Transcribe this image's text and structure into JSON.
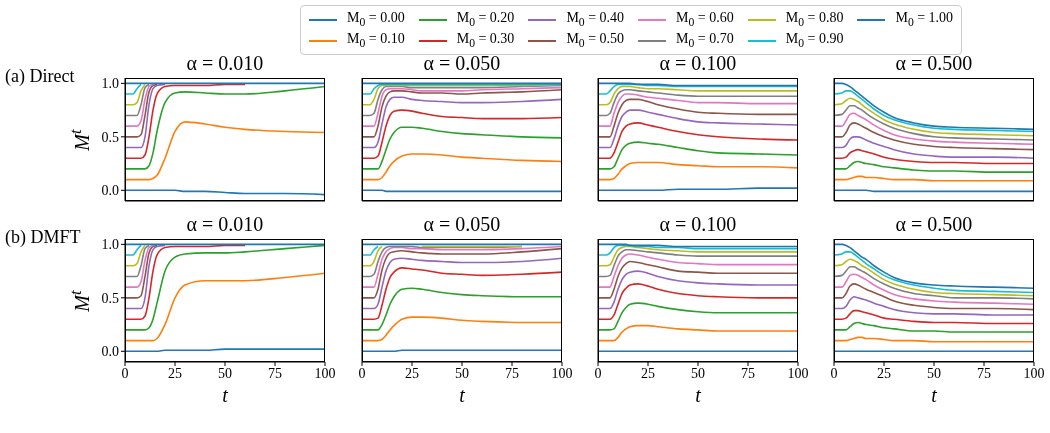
{
  "chart_data": [
    {
      "type": "line",
      "title": "α = 0.010",
      "ylabel": "M$^{t}$",
      "annotations": [
        "(a) Direct"
      ],
      "legend": "top",
      "tick_labels": "y",
      "xlim": [
        0,
        100
      ],
      "xticks": [
        0,
        25,
        50,
        75,
        100
      ],
      "ylim": [
        -0.1,
        1.05
      ],
      "yticks": [
        {
          "value": 0,
          "label": "0.0"
        },
        {
          "value": 0.5,
          "label": "0.5"
        },
        {
          "value": 1,
          "label": "1.0"
        }
      ],
      "x": [
        0,
        4,
        6,
        8,
        10,
        12,
        14,
        16,
        20,
        25,
        30,
        40,
        50,
        60,
        80,
        100
      ],
      "series": [
        {
          "name": "M$_{0}$ = 0.00",
          "color": "#1f77b4",
          "values": [
            0,
            0,
            0,
            0,
            0,
            0,
            0,
            0,
            0,
            0,
            -0.01,
            -0.01,
            -0.02,
            -0.03,
            -0.03,
            -0.04
          ]
        },
        {
          "name": "M$_{0}$ = 0.10",
          "color": "#ff7f0e",
          "values": [
            0.1,
            0.1,
            0.1,
            0.1,
            0.1,
            0.1,
            0.11,
            0.14,
            0.3,
            0.55,
            0.64,
            0.62,
            0.59,
            0.57,
            0.55,
            0.54
          ]
        },
        {
          "name": "M$_{0}$ = 0.20",
          "color": "#2ca02c",
          "values": [
            0.2,
            0.2,
            0.2,
            0.2,
            0.2,
            0.23,
            0.35,
            0.55,
            0.82,
            0.91,
            0.92,
            0.91,
            0.9,
            0.9,
            0.93,
            0.97
          ]
        },
        {
          "name": "M$_{0}$ = 0.30",
          "color": "#d62728",
          "values": [
            0.3,
            0.3,
            0.3,
            0.3,
            0.33,
            0.5,
            0.75,
            0.9,
            0.97,
            0.98,
            0.98,
            0.98,
            0.99,
            0.99,
            null,
            null
          ]
        },
        {
          "name": "M$_{0}$ = 0.40",
          "color": "#9467bd",
          "values": [
            0.4,
            0.4,
            0.4,
            0.4,
            0.5,
            0.8,
            0.95,
            0.98,
            0.99,
            null,
            null,
            null,
            null,
            null,
            null,
            null
          ]
        },
        {
          "name": "M$_{0}$ = 0.50",
          "color": "#8c564b",
          "values": [
            0.5,
            0.5,
            0.5,
            0.52,
            0.7,
            0.92,
            0.98,
            0.99,
            null,
            null,
            null,
            null,
            null,
            null,
            null,
            null
          ]
        },
        {
          "name": "M$_{0}$ = 0.60",
          "color": "#e377c2",
          "values": [
            0.6,
            0.6,
            0.6,
            0.65,
            0.85,
            0.97,
            0.99,
            null,
            null,
            null,
            null,
            null,
            null,
            null,
            null,
            null
          ]
        },
        {
          "name": "M$_{0}$ = 0.70",
          "color": "#7f7f7f",
          "values": [
            0.7,
            0.7,
            0.7,
            0.8,
            0.96,
            0.99,
            null,
            null,
            null,
            null,
            null,
            null,
            null,
            null,
            null,
            null
          ]
        },
        {
          "name": "M$_{0}$ = 0.80",
          "color": "#bcbd22",
          "values": [
            0.8,
            0.8,
            0.82,
            0.93,
            0.99,
            null,
            null,
            null,
            null,
            null,
            null,
            null,
            null,
            null,
            null,
            null
          ]
        },
        {
          "name": "M$_{0}$ = 0.90",
          "color": "#17becf",
          "values": [
            0.9,
            0.9,
            0.95,
            0.99,
            null,
            null,
            null,
            null,
            null,
            null,
            null,
            null,
            null,
            null,
            null,
            null
          ]
        },
        {
          "name": "M$_{0}$ = 1.00",
          "color": "#1f77b4",
          "values": [
            1,
            1,
            1,
            1,
            1,
            1,
            1,
            1,
            1,
            1,
            1,
            1,
            1,
            1,
            1,
            1
          ]
        }
      ]
    },
    {
      "type": "line",
      "title": "α = 0.050",
      "tick_labels": false,
      "xlim": [
        0,
        100
      ],
      "xticks": [
        0,
        25,
        50,
        75,
        100
      ],
      "ylim": [
        -0.1,
        1.05
      ],
      "yticks": [
        {
          "value": 0,
          "label": null
        },
        {
          "value": 0.5,
          "label": null
        },
        {
          "value": 1,
          "label": null
        }
      ],
      "x": [
        0,
        4,
        6,
        8,
        10,
        12,
        14,
        16,
        20,
        25,
        30,
        40,
        50,
        60,
        80,
        100
      ],
      "series": [
        {
          "color": "#1f77b4",
          "values": [
            0,
            0,
            0,
            0,
            0,
            -0.01,
            -0.01,
            -0.01,
            -0.01,
            -0.01,
            -0.01,
            -0.01,
            -0.01,
            -0.01,
            -0.01,
            -0.01
          ]
        },
        {
          "color": "#ff7f0e",
          "values": [
            0.1,
            0.1,
            0.1,
            0.1,
            0.12,
            0.17,
            0.23,
            0.27,
            0.32,
            0.34,
            0.34,
            0.33,
            0.31,
            0.3,
            0.28,
            0.27
          ]
        },
        {
          "color": "#2ca02c",
          "values": [
            0.2,
            0.2,
            0.2,
            0.2,
            0.27,
            0.38,
            0.48,
            0.54,
            0.59,
            0.59,
            0.58,
            0.55,
            0.53,
            0.52,
            0.5,
            0.49
          ]
        },
        {
          "color": "#d62728",
          "values": [
            0.3,
            0.3,
            0.3,
            0.32,
            0.45,
            0.6,
            0.7,
            0.74,
            0.75,
            0.74,
            0.72,
            0.69,
            0.68,
            0.67,
            0.67,
            0.68
          ]
        },
        {
          "color": "#9467bd",
          "values": [
            0.4,
            0.4,
            0.4,
            0.45,
            0.62,
            0.78,
            0.85,
            0.87,
            0.87,
            0.85,
            0.84,
            0.83,
            0.82,
            0.82,
            0.83,
            0.85
          ]
        },
        {
          "color": "#8c564b",
          "values": [
            0.5,
            0.5,
            0.5,
            0.6,
            0.78,
            0.88,
            0.92,
            0.93,
            0.93,
            0.92,
            0.91,
            0.91,
            0.9,
            0.91,
            0.92,
            0.94
          ]
        },
        {
          "color": "#e377c2",
          "values": [
            0.6,
            0.6,
            0.6,
            0.72,
            0.88,
            0.94,
            0.95,
            0.95,
            0.95,
            0.94,
            0.93,
            0.93,
            0.93,
            0.94,
            0.95,
            0.96
          ]
        },
        {
          "color": "#7f7f7f",
          "values": [
            0.7,
            0.7,
            0.72,
            0.85,
            0.94,
            0.97,
            0.97,
            0.97,
            0.97,
            0.96,
            0.96,
            0.96,
            0.96,
            0.96,
            0.97,
            0.98
          ]
        },
        {
          "color": "#bcbd22",
          "values": [
            0.8,
            0.8,
            0.85,
            0.95,
            0.98,
            0.98,
            0.98,
            0.98,
            0.98,
            0.98,
            0.98,
            0.98,
            0.98,
            0.98,
            0.98,
            0.99
          ]
        },
        {
          "color": "#17becf",
          "values": [
            0.9,
            0.9,
            0.95,
            0.98,
            0.99,
            0.99,
            0.99,
            0.99,
            0.99,
            0.99,
            0.99,
            0.99,
            0.99,
            0.99,
            0.99,
            0.99
          ]
        },
        {
          "color": "#1f77b4",
          "values": [
            1,
            1,
            1,
            1,
            1,
            1,
            1,
            1,
            1,
            1,
            1,
            1,
            1,
            1,
            1,
            1
          ]
        }
      ]
    },
    {
      "type": "line",
      "title": "α = 0.100",
      "tick_labels": false,
      "xlim": [
        0,
        100
      ],
      "xticks": [
        0,
        25,
        50,
        75,
        100
      ],
      "ylim": [
        -0.1,
        1.05
      ],
      "yticks": [
        {
          "value": 0,
          "label": null
        },
        {
          "value": 0.5,
          "label": null
        },
        {
          "value": 1,
          "label": null
        }
      ],
      "x": [
        0,
        4,
        6,
        8,
        10,
        12,
        14,
        16,
        20,
        25,
        30,
        40,
        50,
        60,
        80,
        100
      ],
      "series": [
        {
          "color": "#1f77b4",
          "values": [
            0,
            0,
            0,
            0,
            0,
            0,
            0,
            0,
            0,
            0,
            0,
            0.01,
            0.01,
            0.01,
            0.02,
            0.02
          ]
        },
        {
          "color": "#ff7f0e",
          "values": [
            0.1,
            0.1,
            0.1,
            0.11,
            0.15,
            0.2,
            0.23,
            0.25,
            0.26,
            0.26,
            0.26,
            0.24,
            0.23,
            0.22,
            0.22,
            0.21
          ]
        },
        {
          "color": "#2ca02c",
          "values": [
            0.2,
            0.2,
            0.2,
            0.22,
            0.3,
            0.38,
            0.42,
            0.44,
            0.45,
            0.44,
            0.43,
            0.4,
            0.37,
            0.35,
            0.34,
            0.33
          ]
        },
        {
          "color": "#d62728",
          "values": [
            0.3,
            0.3,
            0.3,
            0.35,
            0.45,
            0.55,
            0.6,
            0.62,
            0.63,
            0.61,
            0.59,
            0.55,
            0.52,
            0.5,
            0.48,
            0.47
          ]
        },
        {
          "color": "#9467bd",
          "values": [
            0.4,
            0.4,
            0.4,
            0.48,
            0.6,
            0.69,
            0.73,
            0.75,
            0.75,
            0.73,
            0.71,
            0.67,
            0.64,
            0.63,
            0.62,
            0.61
          ]
        },
        {
          "color": "#8c564b",
          "values": [
            0.5,
            0.5,
            0.5,
            0.6,
            0.72,
            0.8,
            0.84,
            0.85,
            0.85,
            0.83,
            0.8,
            0.76,
            0.73,
            0.72,
            0.71,
            0.71
          ]
        },
        {
          "color": "#e377c2",
          "values": [
            0.6,
            0.6,
            0.6,
            0.72,
            0.82,
            0.88,
            0.9,
            0.9,
            0.89,
            0.87,
            0.86,
            0.84,
            0.82,
            0.82,
            0.81,
            0.81
          ]
        },
        {
          "color": "#7f7f7f",
          "values": [
            0.7,
            0.7,
            0.72,
            0.82,
            0.9,
            0.93,
            0.94,
            0.94,
            0.93,
            0.92,
            0.91,
            0.89,
            0.88,
            0.88,
            0.88,
            0.88
          ]
        },
        {
          "color": "#bcbd22",
          "values": [
            0.8,
            0.8,
            0.82,
            0.9,
            0.95,
            0.97,
            0.97,
            0.97,
            0.96,
            0.95,
            0.95,
            0.94,
            0.93,
            0.93,
            0.93,
            0.93
          ]
        },
        {
          "color": "#17becf",
          "values": [
            0.9,
            0.9,
            0.93,
            0.97,
            0.99,
            0.99,
            0.99,
            0.99,
            0.99,
            0.98,
            0.98,
            0.97,
            0.97,
            0.97,
            0.97,
            0.97
          ]
        },
        {
          "color": "#1f77b4",
          "values": [
            1,
            1,
            1,
            1,
            1,
            1,
            1,
            1,
            0.99,
            0.99,
            0.99,
            0.98,
            0.98,
            0.98,
            0.98,
            0.98
          ]
        }
      ]
    },
    {
      "type": "line",
      "title": "α = 0.500",
      "tick_labels": false,
      "xlim": [
        0,
        100
      ],
      "xticks": [
        0,
        25,
        50,
        75,
        100
      ],
      "ylim": [
        -0.1,
        1.05
      ],
      "yticks": [
        {
          "value": 0,
          "label": null
        },
        {
          "value": 0.5,
          "label": null
        },
        {
          "value": 1,
          "label": null
        }
      ],
      "x": [
        0,
        4,
        6,
        8,
        10,
        12,
        14,
        16,
        20,
        25,
        30,
        40,
        50,
        60,
        80,
        100
      ],
      "series": [
        {
          "color": "#1f77b4",
          "values": [
            0,
            0,
            0,
            0,
            0,
            0,
            0,
            0,
            -0.01,
            -0.01,
            -0.01,
            -0.01,
            -0.01,
            -0.01,
            -0.01,
            -0.01
          ]
        },
        {
          "color": "#ff7f0e",
          "values": [
            0.1,
            0.1,
            0.1,
            0.11,
            0.12,
            0.13,
            0.13,
            0.12,
            0.12,
            0.11,
            0.1,
            0.1,
            0.09,
            0.09,
            0.09,
            0.09
          ]
        },
        {
          "color": "#2ca02c",
          "values": [
            0.2,
            0.2,
            0.2,
            0.23,
            0.26,
            0.27,
            0.26,
            0.25,
            0.24,
            0.22,
            0.21,
            0.19,
            0.18,
            0.18,
            0.17,
            0.17
          ]
        },
        {
          "color": "#d62728",
          "values": [
            0.3,
            0.3,
            0.31,
            0.35,
            0.37,
            0.38,
            0.37,
            0.36,
            0.34,
            0.31,
            0.29,
            0.27,
            0.26,
            0.26,
            0.25,
            0.25
          ]
        },
        {
          "color": "#9467bd",
          "values": [
            0.4,
            0.4,
            0.42,
            0.48,
            0.5,
            0.5,
            0.49,
            0.47,
            0.44,
            0.41,
            0.38,
            0.34,
            0.32,
            0.31,
            0.31,
            0.3
          ]
        },
        {
          "color": "#8c564b",
          "values": [
            0.5,
            0.5,
            0.54,
            0.61,
            0.63,
            0.62,
            0.6,
            0.58,
            0.54,
            0.5,
            0.47,
            0.43,
            0.41,
            0.4,
            0.39,
            0.38
          ]
        },
        {
          "color": "#e377c2",
          "values": [
            0.6,
            0.6,
            0.65,
            0.71,
            0.72,
            0.7,
            0.68,
            0.66,
            0.61,
            0.56,
            0.52,
            0.48,
            0.46,
            0.45,
            0.44,
            0.43
          ]
        },
        {
          "color": "#7f7f7f",
          "values": [
            0.7,
            0.71,
            0.75,
            0.79,
            0.79,
            0.77,
            0.75,
            0.72,
            0.67,
            0.62,
            0.58,
            0.53,
            0.5,
            0.49,
            0.48,
            0.47
          ]
        },
        {
          "color": "#bcbd22",
          "values": [
            0.8,
            0.81,
            0.84,
            0.86,
            0.85,
            0.83,
            0.8,
            0.77,
            0.72,
            0.66,
            0.62,
            0.57,
            0.54,
            0.53,
            0.52,
            0.51
          ]
        },
        {
          "color": "#17becf",
          "values": [
            0.9,
            0.91,
            0.93,
            0.93,
            0.91,
            0.88,
            0.85,
            0.82,
            0.76,
            0.7,
            0.66,
            0.61,
            0.58,
            0.57,
            0.56,
            0.55
          ]
        },
        {
          "color": "#1f77b4",
          "values": [
            1,
            1,
            0.99,
            0.97,
            0.94,
            0.91,
            0.88,
            0.85,
            0.79,
            0.73,
            0.68,
            0.63,
            0.6,
            0.59,
            0.58,
            0.57
          ]
        }
      ]
    },
    {
      "type": "line",
      "title": "α = 0.010",
      "ylabel": "M$^{t}$",
      "xlabel": "t",
      "annotations": [
        "(b) DMFT"
      ],
      "xlim": [
        0,
        100
      ],
      "xticks": [
        0,
        25,
        50,
        75,
        100
      ],
      "ylim": [
        -0.1,
        1.05
      ],
      "yticks": [
        {
          "value": 0,
          "label": "0.0"
        },
        {
          "value": 0.5,
          "label": "0.5"
        },
        {
          "value": 1,
          "label": "1.0"
        }
      ],
      "x": [
        0,
        4,
        6,
        8,
        10,
        12,
        14,
        16,
        20,
        25,
        30,
        40,
        50,
        60,
        80,
        100
      ],
      "series": [
        {
          "color": "#1f77b4",
          "values": [
            0,
            0,
            0,
            0,
            0,
            0,
            0,
            0,
            0.01,
            0.01,
            0.01,
            0.01,
            0.02,
            0.02,
            0.02,
            0.02
          ]
        },
        {
          "color": "#ff7f0e",
          "values": [
            0.1,
            0.1,
            0.1,
            0.1,
            0.1,
            0.1,
            0.1,
            0.12,
            0.25,
            0.5,
            0.62,
            0.66,
            0.66,
            0.66,
            0.69,
            0.73
          ]
        },
        {
          "color": "#2ca02c",
          "values": [
            0.2,
            0.2,
            0.2,
            0.2,
            0.2,
            0.22,
            0.3,
            0.45,
            0.75,
            0.88,
            0.91,
            0.92,
            0.92,
            0.93,
            0.96,
            0.99
          ]
        },
        {
          "color": "#d62728",
          "values": [
            0.3,
            0.3,
            0.3,
            0.3,
            0.33,
            0.5,
            0.75,
            0.9,
            0.97,
            0.98,
            0.98,
            0.98,
            0.99,
            0.99,
            null,
            null
          ]
        },
        {
          "color": "#9467bd",
          "values": [
            0.4,
            0.4,
            0.4,
            0.4,
            0.5,
            0.8,
            0.95,
            0.98,
            0.99,
            null,
            null,
            null,
            null,
            null,
            null,
            null
          ]
        },
        {
          "color": "#8c564b",
          "values": [
            0.5,
            0.5,
            0.5,
            0.52,
            0.7,
            0.92,
            0.98,
            0.99,
            null,
            null,
            null,
            null,
            null,
            null,
            null,
            null
          ]
        },
        {
          "color": "#e377c2",
          "values": [
            0.6,
            0.6,
            0.6,
            0.65,
            0.85,
            0.97,
            0.99,
            null,
            null,
            null,
            null,
            null,
            null,
            null,
            null,
            null
          ]
        },
        {
          "color": "#7f7f7f",
          "values": [
            0.7,
            0.7,
            0.7,
            0.8,
            0.96,
            0.99,
            null,
            null,
            null,
            null,
            null,
            null,
            null,
            null,
            null,
            null
          ]
        },
        {
          "color": "#bcbd22",
          "values": [
            0.8,
            0.8,
            0.82,
            0.93,
            0.99,
            null,
            null,
            null,
            null,
            null,
            null,
            null,
            null,
            null,
            null,
            null
          ]
        },
        {
          "color": "#17becf",
          "values": [
            0.9,
            0.9,
            0.95,
            0.99,
            null,
            null,
            null,
            null,
            null,
            null,
            null,
            null,
            null,
            null,
            null,
            null
          ]
        },
        {
          "color": "#1f77b4",
          "values": [
            1,
            1,
            1,
            1,
            1,
            1,
            1,
            1,
            1,
            1,
            1,
            1,
            1,
            1,
            1,
            1
          ]
        }
      ]
    },
    {
      "type": "line",
      "title": "α = 0.050",
      "xlabel": "t",
      "tick_labels": "x",
      "xlim": [
        0,
        100
      ],
      "xticks": [
        0,
        25,
        50,
        75,
        100
      ],
      "ylim": [
        -0.1,
        1.05
      ],
      "yticks": [
        {
          "value": 0,
          "label": null
        },
        {
          "value": 0.5,
          "label": null
        },
        {
          "value": 1,
          "label": null
        }
      ],
      "x": [
        0,
        4,
        6,
        8,
        10,
        12,
        14,
        16,
        20,
        25,
        30,
        40,
        50,
        60,
        80,
        100
      ],
      "series": [
        {
          "color": "#1f77b4",
          "values": [
            0,
            0,
            0,
            0,
            0,
            0,
            0,
            0,
            0.01,
            0.01,
            0.01,
            0.01,
            0.01,
            0.01,
            0.01,
            0.01
          ]
        },
        {
          "color": "#ff7f0e",
          "values": [
            0.1,
            0.1,
            0.1,
            0.1,
            0.11,
            0.15,
            0.2,
            0.24,
            0.3,
            0.32,
            0.32,
            0.31,
            0.29,
            0.28,
            0.27,
            0.27
          ]
        },
        {
          "color": "#2ca02c",
          "values": [
            0.2,
            0.2,
            0.2,
            0.2,
            0.25,
            0.34,
            0.44,
            0.51,
            0.58,
            0.59,
            0.58,
            0.55,
            0.53,
            0.52,
            0.51,
            0.51
          ]
        },
        {
          "color": "#d62728",
          "values": [
            0.3,
            0.3,
            0.3,
            0.31,
            0.43,
            0.58,
            0.69,
            0.74,
            0.78,
            0.77,
            0.76,
            0.73,
            0.72,
            0.71,
            0.72,
            0.74
          ]
        },
        {
          "color": "#9467bd",
          "values": [
            0.4,
            0.4,
            0.4,
            0.44,
            0.6,
            0.75,
            0.83,
            0.86,
            0.87,
            0.86,
            0.85,
            0.84,
            0.83,
            0.83,
            0.84,
            0.87
          ]
        },
        {
          "color": "#8c564b",
          "values": [
            0.5,
            0.5,
            0.5,
            0.58,
            0.76,
            0.87,
            0.92,
            0.93,
            0.94,
            0.93,
            0.92,
            0.91,
            0.91,
            0.91,
            0.93,
            0.96
          ]
        },
        {
          "color": "#e377c2",
          "values": [
            0.6,
            0.6,
            0.6,
            0.72,
            0.86,
            0.93,
            0.96,
            0.97,
            0.97,
            0.96,
            0.96,
            0.95,
            0.95,
            0.95,
            0.96,
            0.98
          ]
        },
        {
          "color": "#7f7f7f",
          "values": [
            0.7,
            0.7,
            0.72,
            0.84,
            0.93,
            0.97,
            0.98,
            0.98,
            0.98,
            0.98,
            0.97,
            0.97,
            0.97,
            0.97,
            0.98,
            null
          ]
        },
        {
          "color": "#bcbd22",
          "values": [
            0.8,
            0.8,
            0.84,
            0.94,
            0.98,
            null,
            null,
            null,
            null,
            null,
            0.98,
            0.98,
            0.98,
            0.98,
            0.98,
            null
          ]
        },
        {
          "color": "#17becf",
          "values": [
            0.9,
            0.9,
            0.95,
            0.98,
            null,
            null,
            null,
            null,
            null,
            null,
            null,
            null,
            null,
            null,
            null,
            null
          ]
        },
        {
          "color": "#1f77b4",
          "values": [
            1,
            1,
            1,
            1,
            1,
            1,
            1,
            1,
            1,
            1,
            1,
            1,
            1,
            1,
            1,
            1
          ]
        }
      ]
    },
    {
      "type": "line",
      "title": "α = 0.100",
      "xlabel": "t",
      "tick_labels": "x",
      "xlim": [
        0,
        100
      ],
      "xticks": [
        0,
        25,
        50,
        75,
        100
      ],
      "ylim": [
        -0.1,
        1.05
      ],
      "yticks": [
        {
          "value": 0,
          "label": null
        },
        {
          "value": 0.5,
          "label": null
        },
        {
          "value": 1,
          "label": null
        }
      ],
      "x": [
        0,
        4,
        6,
        8,
        10,
        12,
        14,
        16,
        20,
        25,
        30,
        40,
        50,
        60,
        80,
        100
      ],
      "series": [
        {
          "color": "#1f77b4",
          "values": [
            0,
            0,
            0,
            0,
            0,
            0,
            0,
            0,
            0,
            0,
            0,
            0,
            0,
            0,
            0,
            0
          ]
        },
        {
          "color": "#ff7f0e",
          "values": [
            0.1,
            0.1,
            0.1,
            0.1,
            0.13,
            0.18,
            0.21,
            0.23,
            0.24,
            0.24,
            0.23,
            0.21,
            0.2,
            0.19,
            0.19,
            0.19
          ]
        },
        {
          "color": "#2ca02c",
          "values": [
            0.2,
            0.2,
            0.2,
            0.21,
            0.28,
            0.36,
            0.41,
            0.44,
            0.45,
            0.44,
            0.42,
            0.39,
            0.37,
            0.36,
            0.36,
            0.36
          ]
        },
        {
          "color": "#d62728",
          "values": [
            0.3,
            0.3,
            0.3,
            0.34,
            0.44,
            0.54,
            0.59,
            0.62,
            0.63,
            0.61,
            0.58,
            0.54,
            0.52,
            0.51,
            0.5,
            0.5
          ]
        },
        {
          "color": "#9467bd",
          "values": [
            0.4,
            0.4,
            0.4,
            0.46,
            0.58,
            0.67,
            0.72,
            0.74,
            0.75,
            0.73,
            0.7,
            0.66,
            0.64,
            0.63,
            0.62,
            0.62
          ]
        },
        {
          "color": "#8c564b",
          "values": [
            0.5,
            0.5,
            0.5,
            0.58,
            0.7,
            0.78,
            0.82,
            0.84,
            0.83,
            0.81,
            0.79,
            0.75,
            0.74,
            0.73,
            0.73,
            0.73
          ]
        },
        {
          "color": "#e377c2",
          "values": [
            0.6,
            0.6,
            0.6,
            0.7,
            0.8,
            0.87,
            0.9,
            0.91,
            0.9,
            0.88,
            0.86,
            0.83,
            0.82,
            0.81,
            0.81,
            0.81
          ]
        },
        {
          "color": "#7f7f7f",
          "values": [
            0.7,
            0.7,
            0.71,
            0.8,
            0.89,
            0.93,
            0.95,
            0.95,
            0.94,
            0.93,
            0.92,
            0.9,
            0.89,
            0.89,
            0.89,
            0.89
          ]
        },
        {
          "color": "#bcbd22",
          "values": [
            0.8,
            0.8,
            0.81,
            0.88,
            0.95,
            0.97,
            0.98,
            0.98,
            0.97,
            0.96,
            0.95,
            0.94,
            0.93,
            0.93,
            0.93,
            0.93
          ]
        },
        {
          "color": "#17becf",
          "values": [
            0.9,
            0.9,
            0.92,
            0.97,
            0.99,
            0.99,
            0.99,
            0.99,
            0.98,
            0.98,
            0.97,
            0.97,
            0.96,
            0.96,
            0.96,
            0.96
          ]
        },
        {
          "color": "#1f77b4",
          "values": [
            1,
            1,
            1,
            1,
            1,
            1,
            1,
            0.99,
            0.99,
            0.99,
            0.99,
            0.98,
            0.98,
            0.98,
            0.98,
            0.98
          ]
        }
      ]
    },
    {
      "type": "line",
      "title": "α = 0.500",
      "xlabel": "t",
      "tick_labels": "x",
      "xlim": [
        0,
        100
      ],
      "xticks": [
        0,
        25,
        50,
        75,
        100
      ],
      "ylim": [
        -0.1,
        1.05
      ],
      "yticks": [
        {
          "value": 0,
          "label": null
        },
        {
          "value": 0.5,
          "label": null
        },
        {
          "value": 1,
          "label": null
        }
      ],
      "x": [
        0,
        4,
        6,
        8,
        10,
        12,
        14,
        16,
        20,
        25,
        30,
        40,
        50,
        60,
        80,
        100
      ],
      "series": [
        {
          "color": "#1f77b4",
          "values": [
            0,
            0,
            0,
            0,
            0,
            0,
            0,
            0,
            0,
            0,
            0,
            0,
            0,
            0,
            0,
            0
          ]
        },
        {
          "color": "#ff7f0e",
          "values": [
            0.1,
            0.1,
            0.1,
            0.11,
            0.12,
            0.13,
            0.13,
            0.12,
            0.12,
            0.11,
            0.1,
            0.1,
            0.09,
            0.09,
            0.09,
            0.09
          ]
        },
        {
          "color": "#2ca02c",
          "values": [
            0.2,
            0.2,
            0.2,
            0.23,
            0.26,
            0.27,
            0.26,
            0.25,
            0.24,
            0.22,
            0.21,
            0.19,
            0.19,
            0.18,
            0.18,
            0.18
          ]
        },
        {
          "color": "#d62728",
          "values": [
            0.3,
            0.3,
            0.31,
            0.35,
            0.38,
            0.38,
            0.37,
            0.36,
            0.34,
            0.31,
            0.3,
            0.28,
            0.27,
            0.27,
            0.26,
            0.26
          ]
        },
        {
          "color": "#9467bd",
          "values": [
            0.4,
            0.4,
            0.42,
            0.48,
            0.51,
            0.5,
            0.49,
            0.48,
            0.45,
            0.42,
            0.39,
            0.36,
            0.35,
            0.35,
            0.34,
            0.34
          ]
        },
        {
          "color": "#8c564b",
          "values": [
            0.5,
            0.5,
            0.54,
            0.61,
            0.63,
            0.62,
            0.6,
            0.58,
            0.55,
            0.51,
            0.47,
            0.43,
            0.41,
            0.4,
            0.4,
            0.39
          ]
        },
        {
          "color": "#e377c2",
          "values": [
            0.6,
            0.6,
            0.65,
            0.71,
            0.72,
            0.71,
            0.69,
            0.67,
            0.62,
            0.57,
            0.53,
            0.49,
            0.47,
            0.46,
            0.45,
            0.44
          ]
        },
        {
          "color": "#7f7f7f",
          "values": [
            0.7,
            0.71,
            0.75,
            0.79,
            0.79,
            0.77,
            0.75,
            0.73,
            0.68,
            0.63,
            0.59,
            0.54,
            0.52,
            0.5,
            0.5,
            0.49
          ]
        },
        {
          "color": "#bcbd22",
          "values": [
            0.8,
            0.81,
            0.84,
            0.86,
            0.85,
            0.83,
            0.8,
            0.78,
            0.73,
            0.67,
            0.63,
            0.58,
            0.55,
            0.54,
            0.53,
            0.52
          ]
        },
        {
          "color": "#17becf",
          "values": [
            0.9,
            0.91,
            0.93,
            0.93,
            0.91,
            0.88,
            0.85,
            0.82,
            0.77,
            0.71,
            0.67,
            0.62,
            0.59,
            0.57,
            0.56,
            0.55
          ]
        },
        {
          "color": "#1f77b4",
          "values": [
            1,
            1,
            0.99,
            0.97,
            0.94,
            0.91,
            0.88,
            0.86,
            0.8,
            0.74,
            0.69,
            0.64,
            0.62,
            0.61,
            0.6,
            0.59
          ]
        }
      ]
    }
  ]
}
